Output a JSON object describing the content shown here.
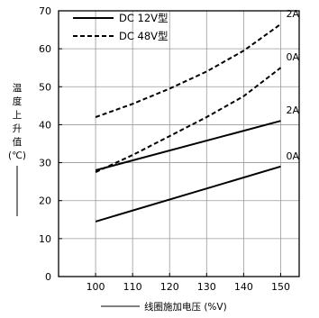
{
  "chart_data": {
    "type": "line",
    "xlabel": "线圈施加电压 (%V)",
    "ylabel_chars": [
      "温",
      "度",
      "上",
      "升",
      "值",
      "(℃)"
    ],
    "x_ticks": [
      "100",
      "110",
      "120",
      "130",
      "140",
      "150"
    ],
    "y_ticks": [
      "0",
      "10",
      "20",
      "30",
      "40",
      "50",
      "60",
      "70"
    ],
    "xlim": [
      90,
      155
    ],
    "ylim": [
      0,
      70
    ],
    "grid": true,
    "legend_position": "top-left",
    "legend": [
      {
        "label": "DC 12V型",
        "style": "solid"
      },
      {
        "label": "DC 48V型",
        "style": "dashed"
      }
    ],
    "series": [
      {
        "name": "DC 48V型",
        "style": "dashed",
        "end_label": "2A",
        "x": [
          100,
          110,
          120,
          130,
          140,
          150
        ],
        "y": [
          42,
          45.5,
          49.5,
          54,
          59.5,
          66.5
        ]
      },
      {
        "name": "DC 48V型",
        "style": "dashed",
        "end_label": "0A",
        "x": [
          100,
          110,
          120,
          130,
          140,
          150
        ],
        "y": [
          27.5,
          32,
          37,
          42,
          47.5,
          55
        ]
      },
      {
        "name": "DC 12V型",
        "style": "solid",
        "end_label": "2A",
        "x": [
          100,
          150
        ],
        "y": [
          28,
          41
        ]
      },
      {
        "name": "DC 12V型",
        "style": "solid",
        "end_label": "0A",
        "x": [
          100,
          150
        ],
        "y": [
          14.5,
          29
        ]
      }
    ],
    "colors": {
      "line": "#000000",
      "grid": "#9a9a9a",
      "axis": "#000000"
    }
  }
}
